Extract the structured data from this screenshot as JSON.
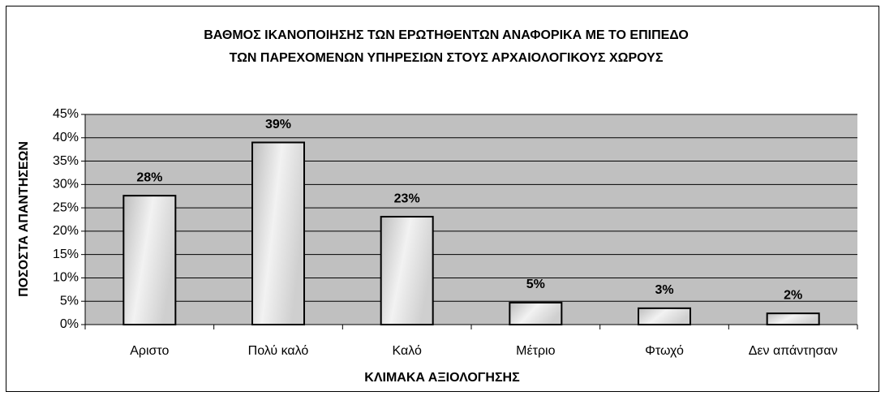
{
  "chart_data": {
    "type": "bar",
    "title": [
      "ΒΑΘΜΟΣ ΙΚΑΝΟΠΟΙΗΣΗΣ ΤΩΝ ΕΡΩΤΗΘΕΝΤΩΝ ΑΝΑΦΟΡΙΚΑ ΜΕ ΤΟ ΕΠΙΠΕΔΟ",
      "ΤΩΝ ΠΑΡΕΧΟΜΕΝΩΝ ΥΠΗΡΕΣΙΩΝ ΣΤΟΥΣ ΑΡΧΑΙΟΛΟΓΙΚΟΥΣ ΧΩΡΟΥΣ"
    ],
    "x_label": "ΚΛΙΜΑΚΑ ΑΞΙΟΛΟΓΗΣΗΣ",
    "y_label": "ΠΟΣΟΣΤΑ ΑΠΑΝΤΗΣΕΩΝ",
    "categories": [
      "Αριστο",
      "Πολύ καλό",
      "Καλό",
      "Μέτριο",
      "Φτωχό",
      "Δεν απάντησαν"
    ],
    "values": [
      27.6,
      39,
      23.1,
      4.7,
      3.5,
      2.4
    ],
    "value_labels": [
      "28%",
      "39%",
      "23%",
      "5%",
      "3%",
      "2%"
    ],
    "color": "#d9d9d9",
    "ylim": [
      0,
      45
    ],
    "yticks": [
      {
        "value": 0,
        "label": "0%"
      },
      {
        "value": 5,
        "label": "5%"
      },
      {
        "value": 10,
        "label": "10%"
      },
      {
        "value": 15,
        "label": "15%"
      },
      {
        "value": 20,
        "label": "20%"
      },
      {
        "value": 25,
        "label": "25%"
      },
      {
        "value": 30,
        "label": "30%"
      },
      {
        "value": 35,
        "label": "35%"
      },
      {
        "value": 40,
        "label": "40%"
      },
      {
        "value": 45,
        "label": "45%"
      }
    ],
    "grid": true
  }
}
